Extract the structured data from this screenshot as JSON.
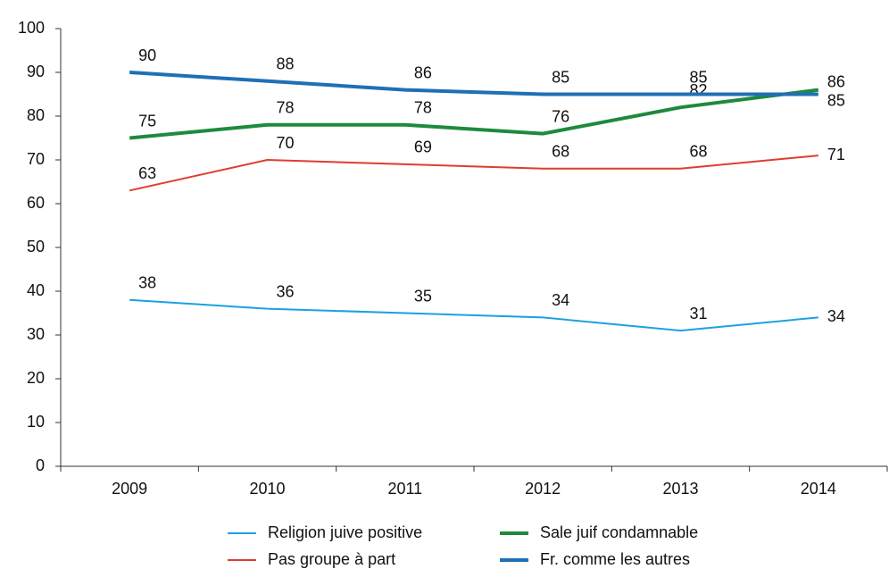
{
  "chart_data": {
    "type": "line",
    "categories": [
      "2009",
      "2010",
      "2011",
      "2012",
      "2013",
      "2014"
    ],
    "series": [
      {
        "name": "Religion juive positive",
        "color": "#1ba1e2",
        "width": 2,
        "values": [
          38,
          36,
          35,
          34,
          31,
          34
        ]
      },
      {
        "name": "Sale juif condamnable",
        "color": "#1e8a3c",
        "width": 4,
        "values": [
          75,
          78,
          78,
          76,
          82,
          86
        ]
      },
      {
        "name": "Pas groupe à part",
        "color": "#e03c31",
        "width": 2,
        "values": [
          63,
          70,
          69,
          68,
          68,
          71
        ]
      },
      {
        "name": "Fr. comme les autres",
        "color": "#1f6fb5",
        "width": 4,
        "values": [
          90,
          88,
          86,
          85,
          85,
          85
        ]
      }
    ],
    "ylim": [
      0,
      100
    ],
    "yticks": [
      0,
      10,
      20,
      30,
      40,
      50,
      60,
      70,
      80,
      90,
      100
    ],
    "grid": false
  }
}
